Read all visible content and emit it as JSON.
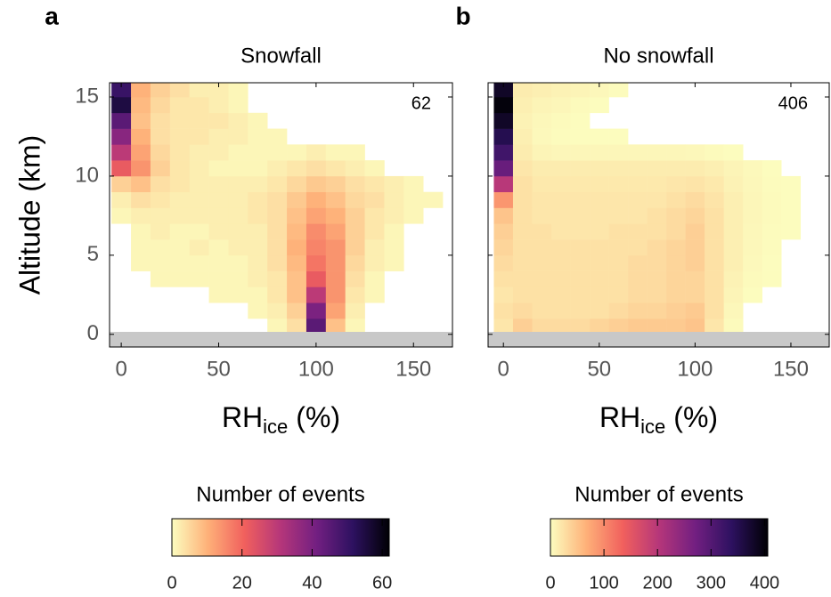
{
  "chart_data": [
    {
      "type": "heatmap",
      "panel": "a",
      "title": "Snowfall",
      "annotation": 62,
      "ylabel": "Altitude (km)",
      "xlabel": {
        "main": "RH",
        "sub": "ice",
        "rest": "(%)"
      },
      "xlim": [
        -6,
        170
      ],
      "ylim": [
        -0.8,
        15.9
      ],
      "xticks": [
        0,
        50,
        100,
        150
      ],
      "yticks": [
        0,
        5,
        10,
        15
      ],
      "ytick_labels": true,
      "x_bins": [
        -5,
        5,
        15,
        25,
        35,
        45,
        55,
        65,
        75,
        85,
        95,
        105,
        115,
        125,
        135,
        145,
        155,
        165
      ],
      "y_bins": [
        0,
        1,
        2,
        3,
        4,
        5,
        6,
        7,
        8,
        9,
        10,
        11,
        12,
        13,
        14,
        15,
        16
      ],
      "values": [
        [
          0,
          0,
          0,
          0,
          0,
          0,
          0,
          0,
          1,
          4,
          45,
          8,
          1,
          0,
          0,
          0,
          0
        ],
        [
          0,
          0,
          0,
          0,
          0,
          0,
          0,
          1,
          2,
          6,
          40,
          12,
          2,
          0,
          0,
          0,
          0
        ],
        [
          0,
          0,
          0,
          0,
          0,
          1,
          1,
          1,
          3,
          8,
          30,
          14,
          3,
          1,
          0,
          0,
          0
        ],
        [
          0,
          0,
          1,
          1,
          1,
          1,
          1,
          2,
          3,
          8,
          22,
          14,
          4,
          1,
          0,
          0,
          0
        ],
        [
          0,
          1,
          1,
          1,
          1,
          1,
          1,
          2,
          4,
          9,
          18,
          14,
          5,
          2,
          1,
          0,
          0
        ],
        [
          0,
          1,
          1,
          1,
          2,
          1,
          2,
          2,
          4,
          10,
          16,
          14,
          6,
          2,
          1,
          0,
          0
        ],
        [
          0,
          1,
          2,
          1,
          1,
          2,
          2,
          2,
          4,
          9,
          15,
          12,
          6,
          3,
          1,
          0,
          0
        ],
        [
          1,
          2,
          2,
          2,
          2,
          2,
          2,
          3,
          4,
          8,
          12,
          10,
          6,
          3,
          2,
          1,
          0
        ],
        [
          2,
          4,
          3,
          2,
          2,
          2,
          2,
          3,
          4,
          7,
          10,
          8,
          5,
          4,
          2,
          1,
          1
        ],
        [
          6,
          8,
          4,
          3,
          2,
          2,
          2,
          2,
          3,
          5,
          7,
          6,
          4,
          3,
          2,
          1,
          0
        ],
        [
          22,
          14,
          6,
          3,
          2,
          1,
          1,
          1,
          2,
          3,
          4,
          3,
          2,
          1,
          0,
          0,
          0
        ],
        [
          30,
          12,
          5,
          3,
          2,
          2,
          1,
          1,
          1,
          1,
          2,
          1,
          1,
          0,
          0,
          0,
          0
        ],
        [
          38,
          10,
          4,
          3,
          3,
          2,
          2,
          1,
          1,
          0,
          0,
          0,
          0,
          0,
          0,
          0,
          0
        ],
        [
          45,
          8,
          4,
          3,
          3,
          3,
          2,
          1,
          0,
          0,
          0,
          0,
          0,
          0,
          0,
          0,
          0
        ],
        [
          55,
          9,
          5,
          3,
          3,
          2,
          1,
          0,
          0,
          0,
          0,
          0,
          0,
          0,
          0,
          0,
          0
        ],
        [
          50,
          10,
          6,
          4,
          2,
          2,
          1,
          0,
          0,
          0,
          0,
          0,
          0,
          0,
          0,
          0,
          0
        ]
      ],
      "colorbar_label": "Number of events",
      "clim": [
        0,
        62
      ],
      "cticks": [
        0,
        20,
        40,
        60
      ],
      "colormap": [
        "#fcfdbf",
        "#feb078",
        "#f1605d",
        "#b5367a",
        "#721f81",
        "#2d1160",
        "#000004"
      ]
    },
    {
      "type": "heatmap",
      "panel": "b",
      "title": "No snowfall",
      "annotation": 406,
      "xlabel": {
        "main": "RH",
        "sub": "ice",
        "rest": "(%)"
      },
      "xlim": [
        -8,
        170
      ],
      "ylim": [
        -0.8,
        15.9
      ],
      "xticks": [
        0,
        50,
        100,
        150
      ],
      "yticks": [
        0,
        5,
        10,
        15
      ],
      "ytick_labels": false,
      "x_bins": [
        -5,
        5,
        15,
        25,
        35,
        45,
        55,
        65,
        75,
        85,
        95,
        105,
        115,
        125,
        135,
        145,
        155,
        165
      ],
      "y_bins": [
        0,
        1,
        2,
        3,
        4,
        5,
        6,
        7,
        8,
        9,
        10,
        11,
        12,
        13,
        14,
        15,
        16
      ],
      "values": [
        [
          20,
          40,
          30,
          30,
          30,
          35,
          40,
          45,
          45,
          45,
          50,
          20,
          3,
          0,
          0,
          0,
          0
        ],
        [
          25,
          30,
          25,
          25,
          25,
          25,
          30,
          35,
          35,
          40,
          45,
          25,
          5,
          0,
          0,
          0,
          0
        ],
        [
          20,
          25,
          25,
          25,
          25,
          25,
          25,
          30,
          30,
          35,
          35,
          25,
          8,
          1,
          0,
          0,
          0
        ],
        [
          25,
          25,
          25,
          25,
          25,
          25,
          25,
          30,
          30,
          35,
          35,
          25,
          10,
          3,
          1,
          0,
          0
        ],
        [
          30,
          25,
          25,
          25,
          25,
          25,
          25,
          30,
          30,
          35,
          40,
          25,
          12,
          4,
          1,
          0,
          0
        ],
        [
          35,
          25,
          25,
          25,
          25,
          25,
          25,
          25,
          30,
          35,
          40,
          25,
          12,
          5,
          2,
          0,
          0
        ],
        [
          40,
          25,
          25,
          20,
          20,
          20,
          25,
          25,
          25,
          30,
          40,
          25,
          12,
          5,
          2,
          1,
          0
        ],
        [
          50,
          25,
          20,
          20,
          20,
          20,
          20,
          20,
          25,
          30,
          35,
          25,
          12,
          6,
          3,
          1,
          0
        ],
        [
          90,
          25,
          20,
          20,
          20,
          20,
          20,
          20,
          20,
          25,
          30,
          22,
          12,
          6,
          3,
          1,
          0
        ],
        [
          200,
          25,
          18,
          18,
          18,
          18,
          18,
          18,
          18,
          20,
          22,
          18,
          10,
          5,
          2,
          1,
          0
        ],
        [
          280,
          20,
          15,
          15,
          15,
          15,
          15,
          15,
          15,
          15,
          15,
          12,
          8,
          4,
          1,
          0,
          0
        ],
        [
          320,
          15,
          8,
          6,
          6,
          6,
          6,
          6,
          6,
          6,
          5,
          3,
          1,
          0,
          0,
          0,
          0
        ],
        [
          350,
          12,
          4,
          2,
          1,
          1,
          1,
          0,
          0,
          0,
          0,
          0,
          0,
          0,
          0,
          0,
          0
        ],
        [
          380,
          10,
          5,
          3,
          1,
          0,
          0,
          0,
          0,
          0,
          0,
          0,
          0,
          0,
          0,
          0,
          0
        ],
        [
          400,
          12,
          8,
          6,
          3,
          1,
          0,
          0,
          0,
          0,
          0,
          0,
          0,
          0,
          0,
          0,
          0
        ],
        [
          380,
          15,
          12,
          10,
          8,
          5,
          2,
          0,
          0,
          0,
          0,
          0,
          0,
          0,
          0,
          0,
          0
        ]
      ],
      "colorbar_label": "Number of events",
      "clim": [
        0,
        406
      ],
      "cticks": [
        0,
        100,
        200,
        300,
        400
      ],
      "colormap": [
        "#fcfdbf",
        "#feb078",
        "#f1605d",
        "#b5367a",
        "#721f81",
        "#2d1160",
        "#000004"
      ]
    }
  ]
}
